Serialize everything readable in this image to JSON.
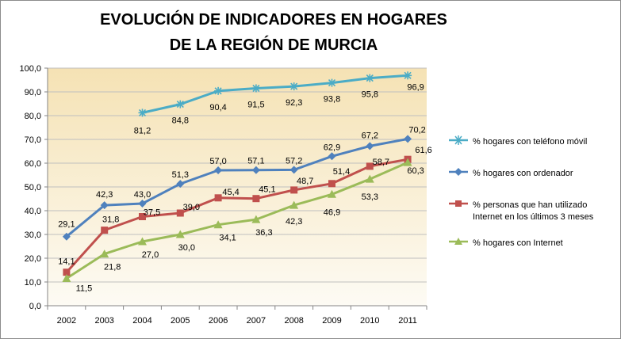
{
  "chart_data": {
    "type": "line",
    "title_line1": "EVOLUCIÓN DE INDICADORES EN HOGARES",
    "title_line2": "DE LA REGIÓN DE MURCIA",
    "categories": [
      "2002",
      "2003",
      "2004",
      "2005",
      "2006",
      "2007",
      "2008",
      "2009",
      "2010",
      "2011"
    ],
    "ylim": [
      0,
      100
    ],
    "yticks": [
      "0,0",
      "10,0",
      "20,0",
      "30,0",
      "40,0",
      "50,0",
      "60,0",
      "70,0",
      "80,0",
      "90,0",
      "100,0"
    ],
    "grid": true,
    "legend_position": "right",
    "series": [
      {
        "name": "% hogares con teléfono móvil",
        "color": "#4bacc6",
        "marker": "star",
        "values": [
          null,
          null,
          81.2,
          84.8,
          90.4,
          91.5,
          92.3,
          93.8,
          95.8,
          96.9
        ],
        "labels": [
          "",
          "",
          "81,2",
          "84,8",
          "90,4",
          "91,5",
          "92,3",
          "93,8",
          "95,8",
          "96,9"
        ]
      },
      {
        "name": "% hogares con ordenador",
        "color": "#4f81bd",
        "marker": "diamond",
        "values": [
          29.1,
          42.3,
          43.0,
          51.3,
          57.0,
          57.1,
          57.2,
          62.9,
          67.2,
          70.2
        ],
        "labels": [
          "29,1",
          "42,3",
          "43,0",
          "51,3",
          "57,0",
          "57,1",
          "57,2",
          "62,9",
          "67,2",
          "70,2"
        ]
      },
      {
        "name_line1": "% personas que han utilizado",
        "name_line2": "Internet en los últimos  3 meses",
        "color": "#c0504d",
        "marker": "square",
        "values": [
          14.1,
          31.8,
          37.5,
          39.0,
          45.4,
          45.1,
          48.7,
          51.4,
          58.7,
          61.6
        ],
        "labels": [
          "14,1",
          "31,8",
          "37,5",
          "39,0",
          "45,4",
          "45,1",
          "48,7",
          "51,4",
          "58,7",
          "61,6"
        ]
      },
      {
        "name": "% hogares con Internet",
        "color": "#9bbb59",
        "marker": "triangle",
        "values": [
          11.5,
          21.8,
          27.0,
          30.0,
          34.1,
          36.3,
          42.3,
          46.9,
          53.3,
          60.3
        ],
        "labels": [
          "11,5",
          "21,8",
          "27,0",
          "30,0",
          "34,1",
          "36,3",
          "42,3",
          "46,9",
          "53,3",
          "60,3"
        ]
      }
    ]
  }
}
